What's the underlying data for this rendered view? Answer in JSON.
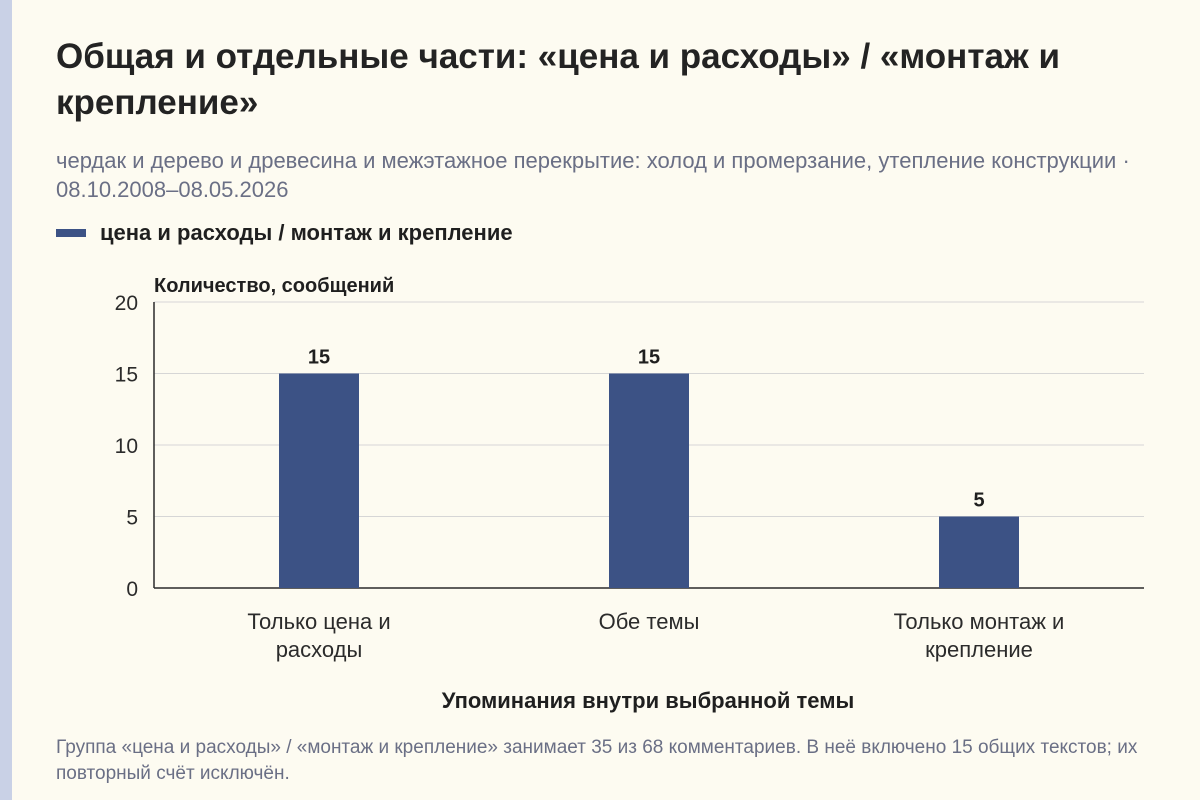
{
  "title": "Общая и отдельные части: «цена и расходы» / «монтаж и крепление»",
  "subtitle": "чердак и дерево и древесина и межэтажное перекрытие: холод и промерзание, утепление конструкции · 08.10.2008–08.05.2026",
  "caption": "Группа «цена и расходы» / «монтаж и крепление» занимает 35 из 68 комментариев. В неё включено 15 общих текстов; их повторный счёт исключён.",
  "colors": {
    "bar": "#3c5285",
    "grid": "#d6d6d6",
    "axis": "#2b2b2b"
  },
  "chart_data": {
    "type": "bar",
    "categories": [
      "Только цена и расходы",
      "Обе темы",
      "Только монтаж и крепление"
    ],
    "series": [
      {
        "name": "цена и расходы / монтаж и крепление",
        "values": [
          15,
          15,
          5
        ]
      }
    ],
    "ylabel": "Количество, сообщений",
    "xlabel": "Упоминания внутри выбранной темы",
    "ylim": [
      0,
      20
    ],
    "yticks": [
      0,
      5,
      10,
      15,
      20
    ],
    "grid": true,
    "legend": "top-left",
    "data_labels": [
      "15",
      "15",
      "5"
    ]
  }
}
